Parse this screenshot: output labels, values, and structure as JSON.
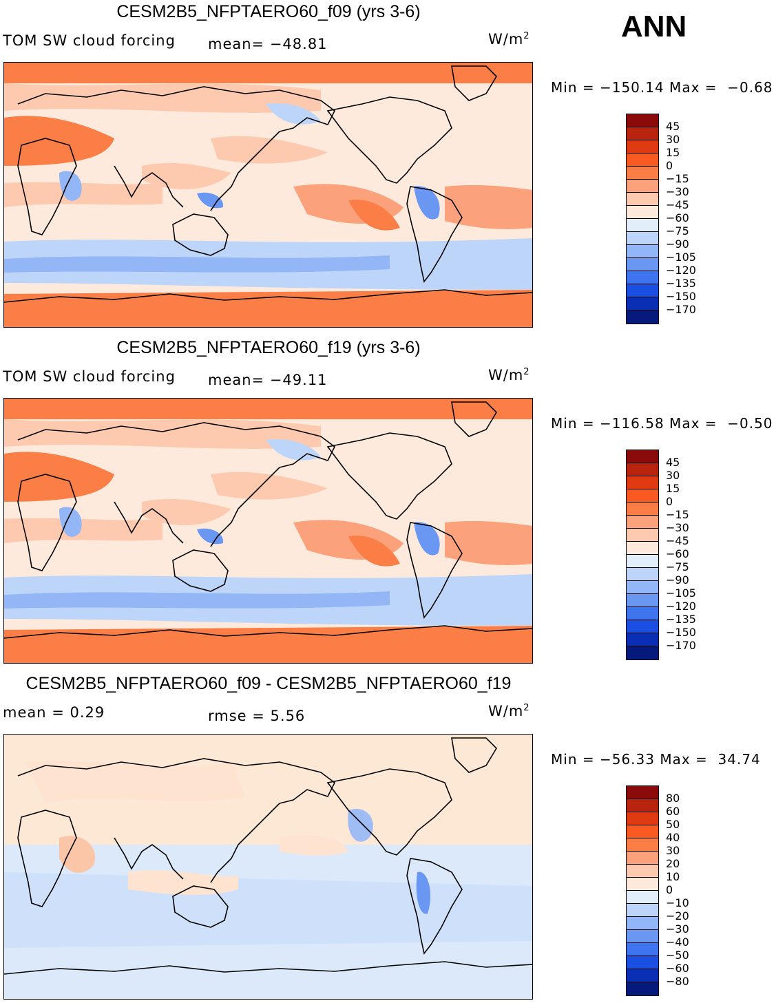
{
  "season": "ANN",
  "panels": [
    {
      "title": "CESM2B5_NFPTAERO60_f09 (yrs 3-6)",
      "left_label": "TOM SW cloud forcing",
      "stat1": "mean= −48.81",
      "stat2": "",
      "units_base": "W/m",
      "units_exp": "2",
      "minmax": "Min = −150.14 Max =  −0.68",
      "colorbar_labels": [
        "45",
        "30",
        "15",
        "0",
        "−15",
        "−30",
        "−45",
        "−60",
        "−75",
        "−90",
        "−105",
        "−120",
        "−135",
        "−150",
        "−170"
      ]
    },
    {
      "title": "CESM2B5_NFPTAERO60_f19 (yrs 3-6)",
      "left_label": "TOM SW cloud forcing",
      "stat1": "mean= −49.11",
      "stat2": "",
      "units_base": "W/m",
      "units_exp": "2",
      "minmax": "Min = −116.58 Max =  −0.50",
      "colorbar_labels": [
        "45",
        "30",
        "15",
        "0",
        "−15",
        "−30",
        "−45",
        "−60",
        "−75",
        "−90",
        "−105",
        "−120",
        "−135",
        "−150",
        "−170"
      ]
    },
    {
      "title": "CESM2B5_NFPTAERO60_f09 - CESM2B5_NFPTAERO60_f19",
      "left_label": "mean =    0.29",
      "stat1": "",
      "stat2": "rmse =    5.56",
      "units_base": "W/m",
      "units_exp": "2",
      "minmax": "Min = −56.33 Max =  34.74",
      "colorbar_labels": [
        "80",
        "60",
        "50",
        "40",
        "30",
        "20",
        "10",
        "0",
        "−10",
        "−20",
        "−30",
        "−40",
        "−50",
        "−60",
        "−80"
      ]
    }
  ],
  "colors": {
    "colorbar": [
      "#8b0a0a",
      "#b8240e",
      "#e03a12",
      "#fa5a22",
      "#fb7e47",
      "#fba27c",
      "#fdcab0",
      "#fdeadc",
      "#e2eef9",
      "#bcd5f8",
      "#93b7f6",
      "#6a97f2",
      "#3f74ef",
      "#1a4fe2",
      "#0a2fb4",
      "#061a7c"
    ],
    "bg_field": [
      "#fb7e47",
      "#fb7e47",
      "#fdcab0"
    ],
    "bg_diff": "#fde8d6",
    "coast": "#000000"
  },
  "chart_data": [
    {
      "type": "heatmap",
      "title": "CESM2B5_NFPTAERO60_f09 (yrs 3-6)",
      "variable": "TOM SW cloud forcing",
      "units": "W/m2",
      "mean": -48.81,
      "min": -150.14,
      "max": -0.68,
      "levels": [
        45,
        30,
        15,
        0,
        -15,
        -30,
        -45,
        -60,
        -75,
        -90,
        -105,
        -120,
        -135,
        -150,
        -170
      ],
      "season": "ANN"
    },
    {
      "type": "heatmap",
      "title": "CESM2B5_NFPTAERO60_f19 (yrs 3-6)",
      "variable": "TOM SW cloud forcing",
      "units": "W/m2",
      "mean": -49.11,
      "min": -116.58,
      "max": -0.5,
      "levels": [
        45,
        30,
        15,
        0,
        -15,
        -30,
        -45,
        -60,
        -75,
        -90,
        -105,
        -120,
        -135,
        -150,
        -170
      ],
      "season": "ANN"
    },
    {
      "type": "heatmap",
      "title": "CESM2B5_NFPTAERO60_f09 - CESM2B5_NFPTAERO60_f19",
      "units": "W/m2",
      "mean": 0.29,
      "rmse": 5.56,
      "min": -56.33,
      "max": 34.74,
      "levels": [
        80,
        60,
        50,
        40,
        30,
        20,
        10,
        0,
        -10,
        -20,
        -30,
        -40,
        -50,
        -60,
        -80
      ],
      "season": "ANN"
    }
  ]
}
